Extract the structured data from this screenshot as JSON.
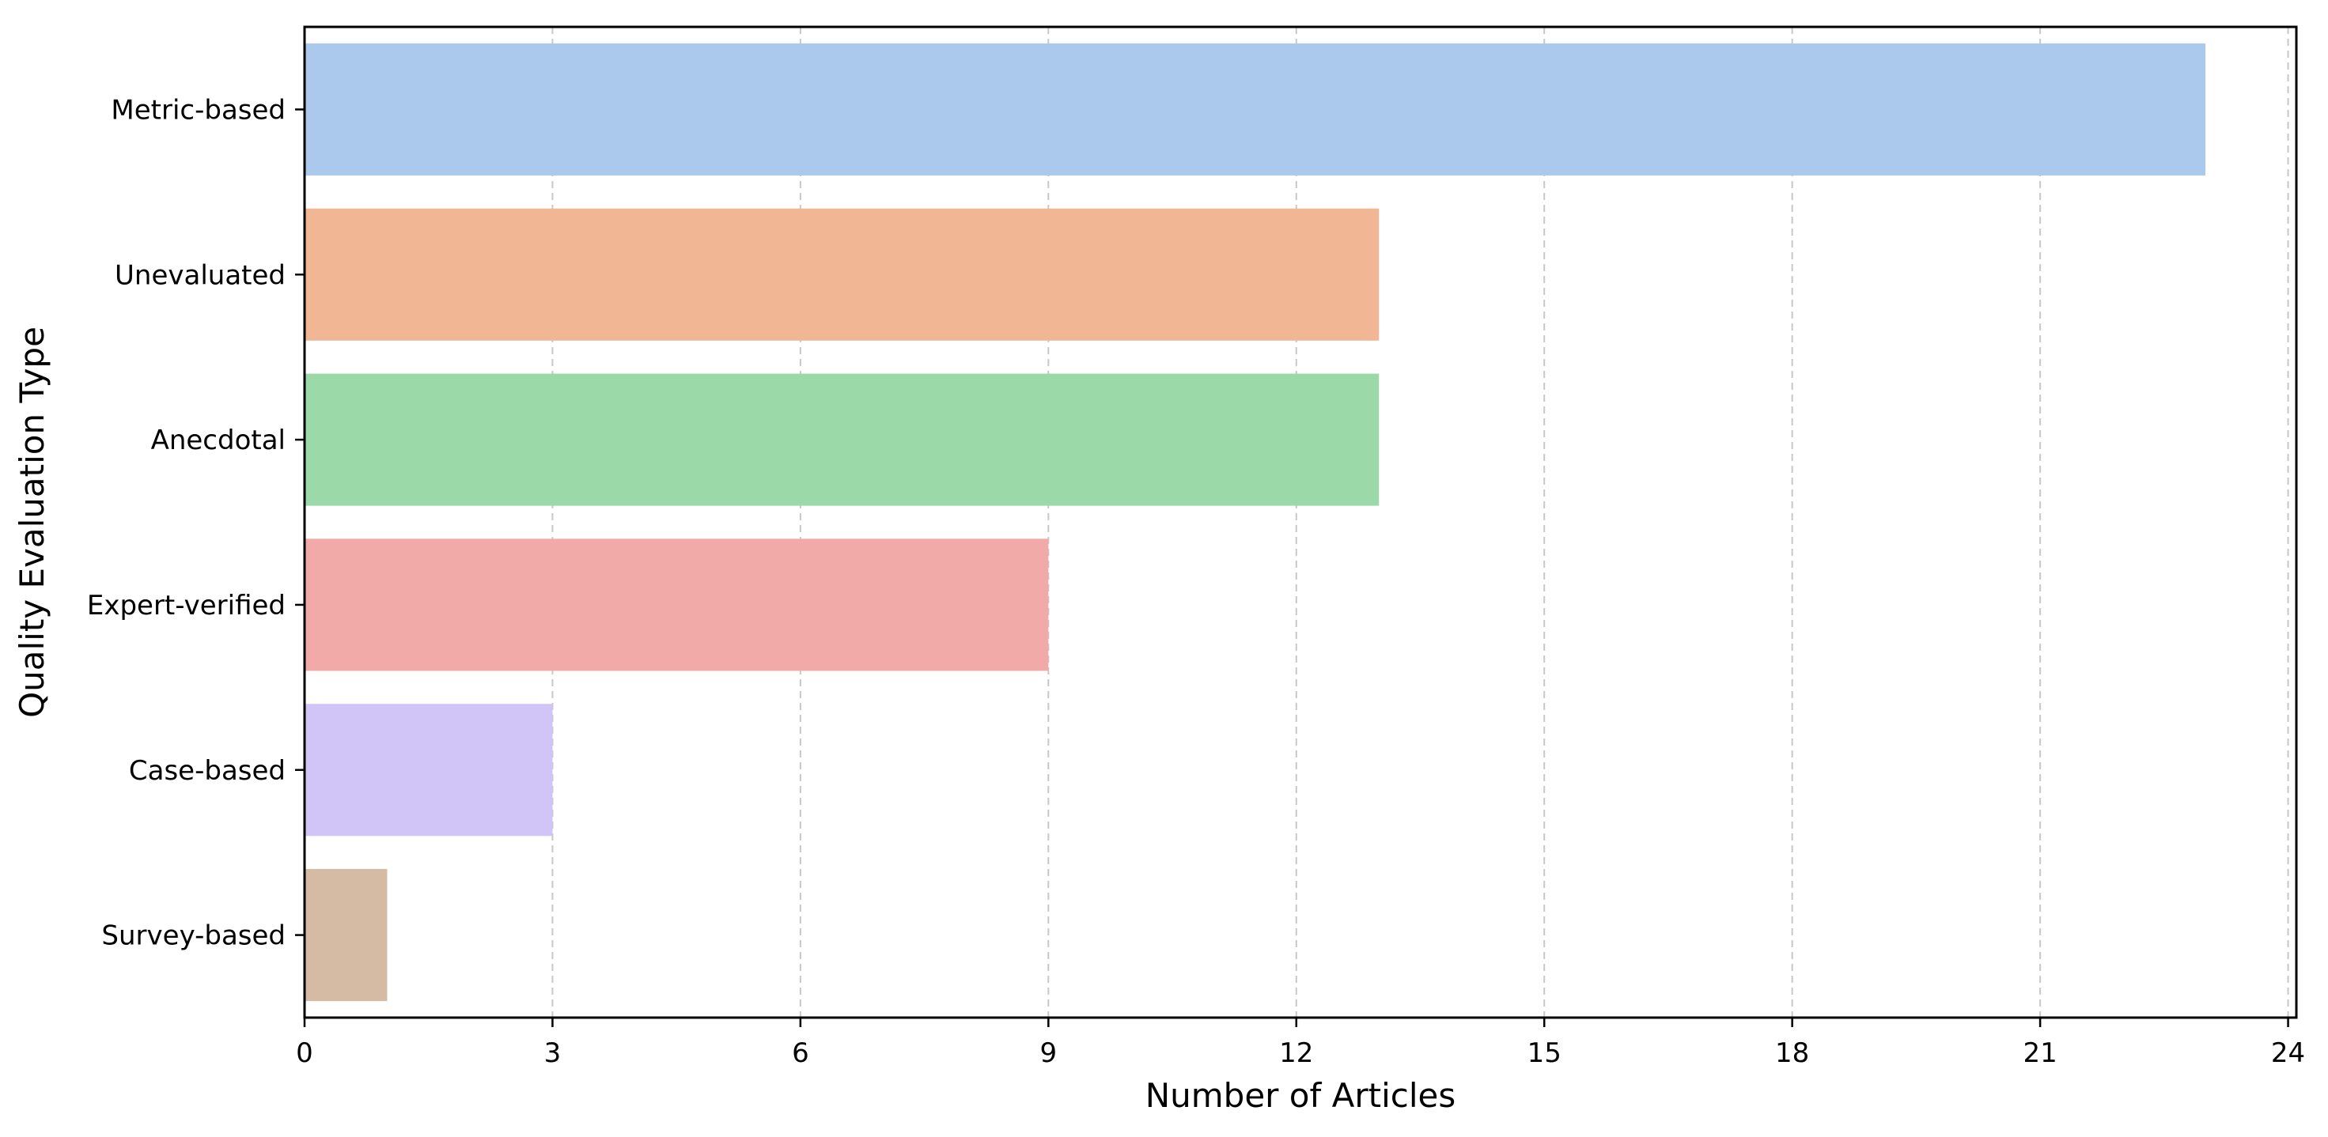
{
  "chart_data": {
    "type": "bar",
    "orientation": "horizontal",
    "title": "",
    "xlabel": "Number of Articles",
    "ylabel": "Quality Evaluation Type",
    "categories": [
      "Metric-based",
      "Unevaluated",
      "Anecdotal",
      "Expert-verified",
      "Case-based",
      "Survey-based"
    ],
    "values": [
      23,
      13,
      13,
      9,
      3,
      1
    ],
    "colors": [
      "#abc9ec",
      "#f1b693",
      "#9bdaa8",
      "#f2aaa8",
      "#d1c4f6",
      "#d6bba4"
    ],
    "xlim": [
      0,
      24.1
    ],
    "xticks": [
      0,
      3,
      6,
      9,
      12,
      15,
      18,
      21,
      24
    ],
    "grid": "x-dashed",
    "legend": "none"
  }
}
